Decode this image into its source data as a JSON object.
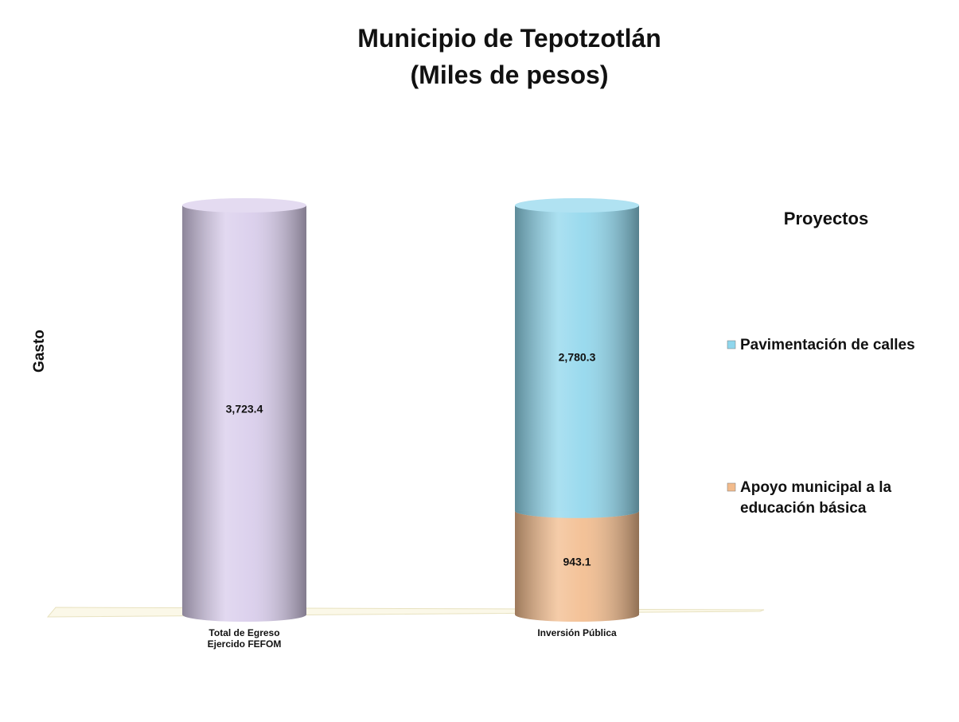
{
  "chart_data": {
    "type": "bar",
    "title": "Municipio de Tepotzotlán",
    "subtitle": "(Miles de pesos)",
    "y_label": "Gasto",
    "legend_title": "Proyectos",
    "legend": "right",
    "stacked": true,
    "categories": [
      "Total de Egreso\nEjercido FEFOM",
      "Inversión Pública"
    ],
    "series": [
      {
        "color": "#d8cceb",
        "values": [
          3723.4,
          null
        ],
        "value_labels": [
          "3,723.4",
          null
        ]
      },
      {
        "name": "Pavimentación de calles",
        "color": "#8fd6ec",
        "values": [
          null,
          2780.3
        ],
        "value_labels": [
          null,
          "2,780.3"
        ]
      },
      {
        "name": "Apoyo municipal a la educación básica",
        "color": "#f2bb8c",
        "values": [
          null,
          943.1
        ],
        "value_labels": [
          null,
          "943.1"
        ]
      }
    ]
  }
}
